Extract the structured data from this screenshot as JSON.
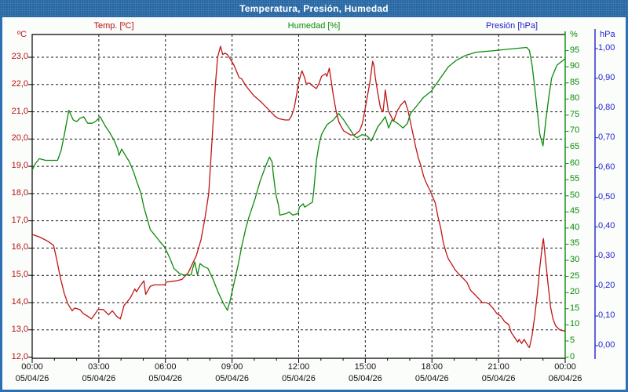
{
  "window": {
    "title": "Temperatura, Presión, Humedad"
  },
  "legend": {
    "temperature": "Temp. [ºC]",
    "humidity": "Humedad [%]",
    "pressure": "Presión [hPa]"
  },
  "axes": {
    "temperature": {
      "unit": "ºC",
      "color": "#b31212",
      "tick_labels": [
        "23,0",
        "22,0",
        "21,0",
        "20,0",
        "19,0",
        "18,0",
        "17,0",
        "16,0",
        "15,0",
        "14,0",
        "13,0",
        "12,0"
      ]
    },
    "humidity": {
      "unit": "%",
      "color": "#0b8a0b",
      "tick_labels": [
        "95",
        "90",
        "85",
        "80",
        "75",
        "70",
        "65",
        "60",
        "55",
        "50",
        "45",
        "40",
        "35",
        "30",
        "25",
        "20",
        "15",
        "10",
        "5",
        "0"
      ]
    },
    "pressure": {
      "unit": "hPa",
      "color": "#2222cc",
      "tick_labels": [
        "1,00",
        "0,90",
        "0,80",
        "0,70",
        "0,60",
        "0,50",
        "0,40",
        "0,30",
        "0,20",
        "0,10",
        "0,00"
      ]
    },
    "x": {
      "times": [
        "00:00",
        "03:00",
        "06:00",
        "09:00",
        "12:00",
        "15:00",
        "18:00",
        "21:00",
        "00:00"
      ],
      "dates": [
        "05/04/26",
        "05/04/26",
        "05/04/26",
        "05/04/26",
        "05/04/26",
        "05/04/26",
        "05/04/26",
        "05/04/26",
        "06/04/26"
      ]
    }
  },
  "chart_data": {
    "type": "line",
    "title": "Temperatura, Presión, Humedad",
    "x_range_hours": [
      0,
      24
    ],
    "x_gridline_every_hours": 3,
    "grid": "dashed-black",
    "axis_ranges": {
      "temperature_c": [
        12,
        23.8
      ],
      "humidity_pct": [
        0,
        100
      ],
      "pressure_hpa": [
        0,
        1.0
      ]
    },
    "series": [
      {
        "name": "Temp. [ºC]",
        "axis": "temperature",
        "color": "#c01414",
        "points": [
          [
            0,
            16.5
          ],
          [
            0.35,
            16.4
          ],
          [
            0.7,
            16.25
          ],
          [
            0.96,
            16.1
          ],
          [
            1.1,
            15.6
          ],
          [
            1.26,
            14.95
          ],
          [
            1.44,
            14.35
          ],
          [
            1.61,
            13.95
          ],
          [
            1.8,
            13.7
          ],
          [
            1.91,
            13.8
          ],
          [
            2.14,
            13.75
          ],
          [
            2.3,
            13.6
          ],
          [
            2.5,
            13.5
          ],
          [
            2.67,
            13.4
          ],
          [
            2.8,
            13.55
          ],
          [
            2.97,
            13.75
          ],
          [
            3.2,
            13.75
          ],
          [
            3.44,
            13.55
          ],
          [
            3.61,
            13.7
          ],
          [
            3.8,
            13.5
          ],
          [
            3.97,
            13.4
          ],
          [
            4.14,
            13.9
          ],
          [
            4.3,
            14.05
          ],
          [
            4.44,
            14.2
          ],
          [
            4.62,
            14.5
          ],
          [
            4.7,
            14.4
          ],
          [
            4.85,
            14.6
          ],
          [
            5.03,
            14.8
          ],
          [
            5.11,
            14.3
          ],
          [
            5.32,
            14.6
          ],
          [
            5.5,
            14.65
          ],
          [
            5.75,
            14.65
          ],
          [
            5.97,
            14.65
          ],
          [
            6.03,
            14.75
          ],
          [
            6.3,
            14.78
          ],
          [
            6.5,
            14.8
          ],
          [
            6.74,
            14.85
          ],
          [
            7.03,
            15.1
          ],
          [
            7.2,
            15.4
          ],
          [
            7.38,
            15.7
          ],
          [
            7.6,
            16.3
          ],
          [
            7.78,
            17.1
          ],
          [
            7.95,
            18.0
          ],
          [
            8.1,
            20.0
          ],
          [
            8.25,
            22.0
          ],
          [
            8.35,
            23.0
          ],
          [
            8.48,
            23.4
          ],
          [
            8.58,
            23.1
          ],
          [
            8.68,
            23.15
          ],
          [
            8.79,
            23.1
          ],
          [
            8.91,
            22.95
          ],
          [
            9.09,
            22.7
          ],
          [
            9.32,
            22.25
          ],
          [
            9.44,
            22.2
          ],
          [
            9.62,
            21.95
          ],
          [
            9.97,
            21.6
          ],
          [
            10.32,
            21.35
          ],
          [
            10.56,
            21.15
          ],
          [
            10.74,
            21.0
          ],
          [
            10.91,
            20.85
          ],
          [
            11.09,
            20.75
          ],
          [
            11.38,
            20.7
          ],
          [
            11.56,
            20.7
          ],
          [
            11.68,
            20.85
          ],
          [
            11.8,
            21.15
          ],
          [
            11.91,
            21.65
          ],
          [
            11.97,
            22.0
          ],
          [
            12.09,
            22.35
          ],
          [
            12.15,
            22.5
          ],
          [
            12.27,
            22.25
          ],
          [
            12.33,
            22.05
          ],
          [
            12.5,
            22.05
          ],
          [
            12.62,
            21.95
          ],
          [
            12.8,
            21.85
          ],
          [
            12.92,
            22.05
          ],
          [
            13.03,
            22.3
          ],
          [
            13.21,
            22.4
          ],
          [
            13.27,
            22.3
          ],
          [
            13.38,
            22.6
          ],
          [
            13.56,
            21.6
          ],
          [
            13.68,
            21.05
          ],
          [
            13.8,
            20.65
          ],
          [
            13.92,
            20.45
          ],
          [
            14.03,
            20.3
          ],
          [
            14.33,
            20.15
          ],
          [
            14.51,
            20.15
          ],
          [
            14.74,
            20.3
          ],
          [
            14.86,
            20.55
          ],
          [
            14.98,
            21.05
          ],
          [
            15.09,
            21.55
          ],
          [
            15.21,
            22.1
          ],
          [
            15.33,
            22.85
          ],
          [
            15.39,
            22.7
          ],
          [
            15.45,
            22.25
          ],
          [
            15.57,
            21.65
          ],
          [
            15.68,
            21.15
          ],
          [
            15.8,
            21.0
          ],
          [
            15.9,
            21.8
          ],
          [
            16.03,
            21.05
          ],
          [
            16.27,
            20.65
          ],
          [
            16.45,
            21.05
          ],
          [
            16.6,
            21.25
          ],
          [
            16.78,
            21.4
          ],
          [
            16.92,
            21.05
          ],
          [
            17.09,
            20.4
          ],
          [
            17.27,
            19.7
          ],
          [
            17.39,
            19.3
          ],
          [
            17.51,
            19.0
          ],
          [
            17.62,
            18.65
          ],
          [
            17.74,
            18.4
          ],
          [
            17.92,
            18.1
          ],
          [
            18.15,
            17.65
          ],
          [
            18.27,
            17.15
          ],
          [
            18.39,
            16.75
          ],
          [
            18.51,
            16.2
          ],
          [
            18.63,
            15.85
          ],
          [
            18.74,
            15.6
          ],
          [
            18.86,
            15.45
          ],
          [
            19.04,
            15.2
          ],
          [
            19.21,
            15.05
          ],
          [
            19.39,
            14.9
          ],
          [
            19.57,
            14.75
          ],
          [
            19.74,
            14.45
          ],
          [
            19.92,
            14.3
          ],
          [
            20.1,
            14.15
          ],
          [
            20.27,
            14.0
          ],
          [
            20.45,
            14.0
          ],
          [
            20.57,
            13.95
          ],
          [
            20.74,
            13.8
          ],
          [
            20.92,
            13.6
          ],
          [
            21.1,
            13.5
          ],
          [
            21.27,
            13.3
          ],
          [
            21.45,
            13.2
          ],
          [
            21.57,
            12.9
          ],
          [
            21.74,
            12.7
          ],
          [
            21.86,
            12.55
          ],
          [
            21.92,
            12.65
          ],
          [
            22.04,
            12.5
          ],
          [
            22.15,
            12.65
          ],
          [
            22.33,
            12.4
          ],
          [
            22.39,
            12.35
          ],
          [
            22.51,
            12.8
          ],
          [
            22.63,
            13.5
          ],
          [
            22.75,
            14.35
          ],
          [
            22.86,
            15.3
          ],
          [
            22.98,
            16.15
          ],
          [
            23.02,
            16.35
          ],
          [
            23.1,
            15.7
          ],
          [
            23.22,
            14.75
          ],
          [
            23.34,
            13.85
          ],
          [
            23.45,
            13.4
          ],
          [
            23.57,
            13.15
          ],
          [
            23.75,
            13.0
          ],
          [
            24,
            12.95
          ]
        ]
      },
      {
        "name": "Humedad [%]",
        "axis": "humidity",
        "color": "#0b8a0b",
        "points": [
          [
            0,
            58
          ],
          [
            0.15,
            60
          ],
          [
            0.32,
            61.5
          ],
          [
            0.6,
            61
          ],
          [
            0.9,
            61
          ],
          [
            1.14,
            61
          ],
          [
            1.3,
            64
          ],
          [
            1.45,
            69
          ],
          [
            1.65,
            76.5
          ],
          [
            1.85,
            73.5
          ],
          [
            2.0,
            73
          ],
          [
            2.15,
            74
          ],
          [
            2.32,
            74.5
          ],
          [
            2.5,
            72.5
          ],
          [
            2.7,
            72.5
          ],
          [
            2.85,
            73
          ],
          [
            3.06,
            74.5
          ],
          [
            3.3,
            71.5
          ],
          [
            3.5,
            69.5
          ],
          [
            3.7,
            67
          ],
          [
            3.85,
            64.5
          ],
          [
            3.91,
            62.5
          ],
          [
            4.03,
            64.5
          ],
          [
            4.2,
            62.5
          ],
          [
            4.38,
            60.5
          ],
          [
            4.56,
            57.5
          ],
          [
            4.73,
            54
          ],
          [
            4.89,
            51
          ],
          [
            5.03,
            46.5
          ],
          [
            5.32,
            39.5
          ],
          [
            5.5,
            38
          ],
          [
            5.73,
            36
          ],
          [
            5.97,
            34
          ],
          [
            6.21,
            30.5
          ],
          [
            6.38,
            27.5
          ],
          [
            6.62,
            26
          ],
          [
            6.79,
            25.5
          ],
          [
            7.15,
            25.5
          ],
          [
            7.27,
            28.5
          ],
          [
            7.32,
            29.5
          ],
          [
            7.44,
            25.5
          ],
          [
            7.56,
            29
          ],
          [
            7.74,
            28
          ],
          [
            7.91,
            27.5
          ],
          [
            8.15,
            24
          ],
          [
            8.38,
            20
          ],
          [
            8.62,
            16.5
          ],
          [
            8.79,
            14.5
          ],
          [
            8.91,
            17.5
          ],
          [
            9.09,
            23
          ],
          [
            9.27,
            28.5
          ],
          [
            9.44,
            34.5
          ],
          [
            9.62,
            40
          ],
          [
            9.74,
            43
          ],
          [
            9.91,
            46.5
          ],
          [
            10.03,
            49
          ],
          [
            10.26,
            54.5
          ],
          [
            10.5,
            59
          ],
          [
            10.68,
            62
          ],
          [
            10.8,
            60.5
          ],
          [
            10.85,
            57
          ],
          [
            10.97,
            50.5
          ],
          [
            11.09,
            47
          ],
          [
            11.15,
            44
          ],
          [
            11.44,
            44.5
          ],
          [
            11.56,
            45
          ],
          [
            11.74,
            44
          ],
          [
            11.97,
            44.5
          ],
          [
            12.03,
            46.5
          ],
          [
            12.21,
            47.5
          ],
          [
            12.27,
            46.5
          ],
          [
            12.5,
            47.5
          ],
          [
            12.62,
            48
          ],
          [
            12.68,
            51.5
          ],
          [
            12.8,
            61
          ],
          [
            12.92,
            66
          ],
          [
            13.03,
            69
          ],
          [
            13.27,
            72
          ],
          [
            13.56,
            73.5
          ],
          [
            13.8,
            75.5
          ],
          [
            14.03,
            73.5
          ],
          [
            14.27,
            71
          ],
          [
            14.51,
            68.5
          ],
          [
            14.62,
            68
          ],
          [
            14.86,
            69
          ],
          [
            15.09,
            68.5
          ],
          [
            15.27,
            67
          ],
          [
            15.57,
            71.5
          ],
          [
            15.8,
            73.5
          ],
          [
            15.9,
            74.5
          ],
          [
            16.05,
            71
          ],
          [
            16.2,
            73.5
          ],
          [
            16.45,
            72.5
          ],
          [
            16.7,
            71
          ],
          [
            16.9,
            72.5
          ],
          [
            17.03,
            75.5
          ],
          [
            17.33,
            78
          ],
          [
            17.62,
            80.5
          ],
          [
            17.98,
            82.5
          ],
          [
            18.33,
            86
          ],
          [
            18.74,
            90
          ],
          [
            19.1,
            92
          ],
          [
            19.51,
            93.5
          ],
          [
            19.98,
            94.5
          ],
          [
            20.8,
            95
          ],
          [
            21.51,
            95.5
          ],
          [
            22.27,
            96
          ],
          [
            22.39,
            95
          ],
          [
            22.51,
            90.5
          ],
          [
            22.63,
            83.5
          ],
          [
            22.75,
            76
          ],
          [
            22.86,
            69
          ],
          [
            23.0,
            65.5
          ],
          [
            23.13,
            73.5
          ],
          [
            23.28,
            81.5
          ],
          [
            23.39,
            86.5
          ],
          [
            23.51,
            88.5
          ],
          [
            23.63,
            90.5
          ],
          [
            23.81,
            91.5
          ],
          [
            24,
            92.5
          ]
        ]
      },
      {
        "name": "Presión [hPa]",
        "axis": "pressure",
        "color": "#2222cc",
        "points": []
      }
    ]
  }
}
